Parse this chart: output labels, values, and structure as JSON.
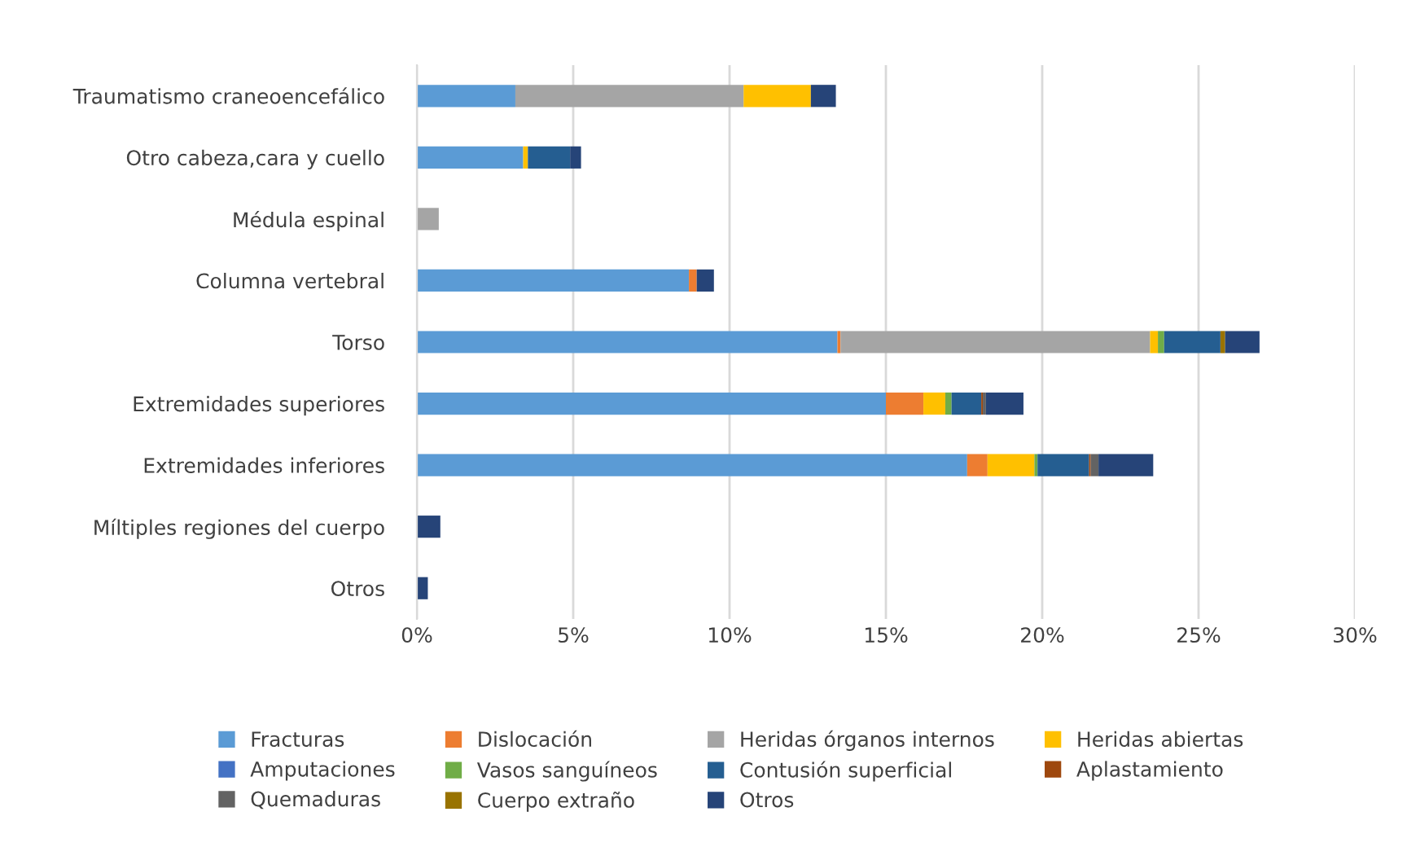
{
  "chart_data": {
    "type": "bar",
    "orientation": "horizontal",
    "stacked": true,
    "categories": [
      "Traumatismo craneoencefálico",
      "Otro cabeza,cara y cuello",
      "Médula espinal",
      "Columna vertebral",
      "Torso",
      "Extremidades superiores",
      "Extremidades inferiores",
      "Míltiples regiones del cuerpo",
      "Otros"
    ],
    "xlim": [
      0,
      30
    ],
    "xticks": [
      {
        "value": 0,
        "label": "0%"
      },
      {
        "value": 5,
        "label": "5%"
      },
      {
        "value": 10,
        "label": "10%"
      },
      {
        "value": 15,
        "label": "15%"
      },
      {
        "value": 20,
        "label": "20%"
      },
      {
        "value": 25,
        "label": "25%"
      },
      {
        "value": 30,
        "label": "30%"
      }
    ],
    "grid": "x",
    "legend": "bottom",
    "series": [
      {
        "name": "Fracturas",
        "color": "#5b9bd5",
        "values": [
          3.15,
          3.4,
          0,
          8.7,
          13.45,
          15.0,
          17.6,
          0,
          0
        ]
      },
      {
        "name": "Dislocación",
        "color": "#ed7d31",
        "values": [
          0,
          0,
          0,
          0.25,
          0.1,
          1.2,
          0.65,
          0,
          0
        ]
      },
      {
        "name": "Heridas órganos internos",
        "color": "#a5a5a5",
        "values": [
          7.3,
          0,
          0.7,
          0,
          9.9,
          0,
          0,
          0,
          0
        ]
      },
      {
        "name": "Heridas abiertas",
        "color": "#ffc000",
        "values": [
          2.15,
          0.15,
          0,
          0,
          0.25,
          0.7,
          1.5,
          0,
          0
        ]
      },
      {
        "name": "Amputaciones",
        "color": "#4472c4",
        "values": [
          0,
          0,
          0,
          0,
          0,
          0,
          0,
          0,
          0
        ]
      },
      {
        "name": "Vasos sanguíneos",
        "color": "#70ad47",
        "values": [
          0,
          0,
          0,
          0,
          0.2,
          0.2,
          0.1,
          0,
          0
        ]
      },
      {
        "name": "Contusión superficial",
        "color": "#255e91",
        "values": [
          0,
          1.35,
          0,
          0,
          1.8,
          0.95,
          1.65,
          0,
          0
        ]
      },
      {
        "name": "Aplastamiento",
        "color": "#9e480e",
        "values": [
          0,
          0,
          0,
          0,
          0,
          0.05,
          0.05,
          0,
          0
        ]
      },
      {
        "name": "Quemaduras",
        "color": "#636363",
        "values": [
          0,
          0,
          0,
          0,
          0,
          0.1,
          0.25,
          0,
          0
        ]
      },
      {
        "name": "Cuerpo extraño",
        "color": "#997300",
        "values": [
          0,
          0,
          0,
          0,
          0.15,
          0,
          0,
          0,
          0
        ]
      },
      {
        "name": "Otros",
        "color": "#264478",
        "values": [
          0.8,
          0.35,
          0,
          0.55,
          1.1,
          1.2,
          1.75,
          0.75,
          0.35
        ]
      }
    ]
  }
}
